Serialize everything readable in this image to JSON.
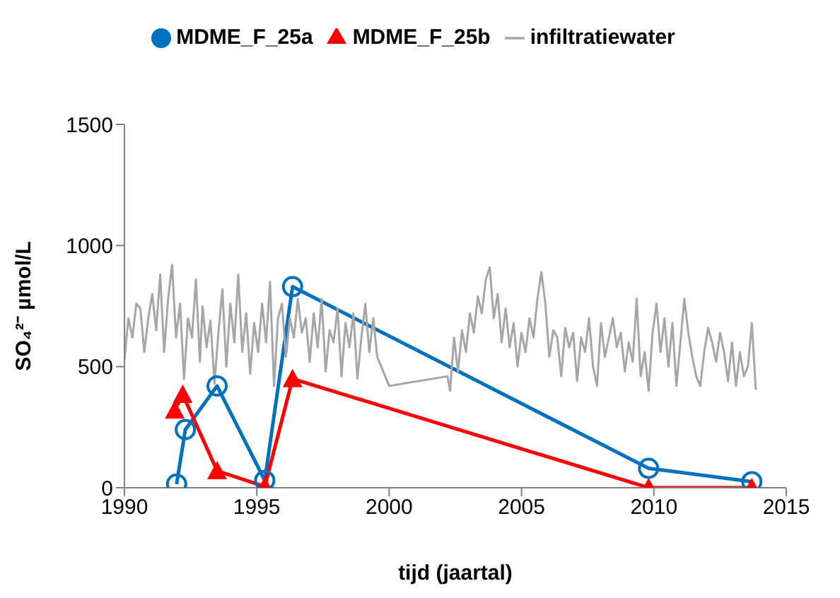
{
  "chart_data": {
    "type": "line",
    "xlabel": "tijd (jaartal)",
    "ylabel": "SO₄²⁻ µmol/L",
    "xlim": [
      1990,
      2015
    ],
    "xticks": [
      1990,
      1995,
      2000,
      2005,
      2010,
      2015
    ],
    "ylim": [
      0,
      1500
    ],
    "yticks": [
      0,
      500,
      1000,
      1500
    ],
    "grid": false,
    "legend": "top",
    "series": [
      {
        "name": "MDME_F_25a",
        "color": "#0070c0",
        "marker": "circle",
        "x": [
          1991.97,
          1992.3,
          1993.5,
          1995.3,
          1996.35,
          2009.8,
          2013.7
        ],
        "values": [
          15,
          240,
          420,
          30,
          830,
          80,
          25
        ]
      },
      {
        "name": "MDME_F_25b",
        "color": "#ff0000",
        "marker": "triangle",
        "x": [
          1991.9,
          1992.2,
          1993.5,
          1995.3,
          1996.35,
          2009.8,
          2013.7
        ],
        "values": [
          320,
          385,
          70,
          5,
          450,
          0,
          0
        ]
      },
      {
        "name": "infiltratiewater",
        "color": "#a6a6a6",
        "marker": "none",
        "x": [
          1990.0,
          1990.15,
          1990.3,
          1990.45,
          1990.6,
          1990.75,
          1990.9,
          1991.05,
          1991.2,
          1991.35,
          1991.5,
          1991.65,
          1991.8,
          1991.95,
          1992.1,
          1992.25,
          1992.4,
          1992.55,
          1992.7,
          1992.85,
          1992.95,
          1993.1,
          1993.25,
          1993.4,
          1993.55,
          1993.7,
          1993.85,
          1994.0,
          1994.15,
          1994.3,
          1994.45,
          1994.6,
          1994.75,
          1994.9,
          1995.05,
          1995.2,
          1995.35,
          1995.5,
          1995.65,
          1995.8,
          1995.95,
          1996.1,
          1996.25,
          1996.4,
          1996.55,
          1996.7,
          1996.85,
          1997.0,
          1997.15,
          1997.3,
          1997.45,
          1997.6,
          1997.75,
          1997.9,
          1998.05,
          1998.2,
          1998.35,
          1998.5,
          1998.65,
          1998.8,
          1998.95,
          1999.1,
          1999.25,
          1999.4,
          1999.55,
          2000.0,
          2002.2,
          2002.3,
          2002.45,
          2002.6,
          2002.75,
          2002.9,
          2003.05,
          2003.2,
          2003.35,
          2003.5,
          2003.65,
          2003.8,
          2003.95,
          2004.1,
          2004.25,
          2004.4,
          2004.55,
          2004.7,
          2004.85,
          2005.0,
          2005.15,
          2005.3,
          2005.45,
          2005.6,
          2005.75,
          2005.9,
          2006.05,
          2006.2,
          2006.35,
          2006.5,
          2006.65,
          2006.8,
          2006.95,
          2007.1,
          2007.25,
          2007.4,
          2007.55,
          2007.7,
          2007.85,
          2008.0,
          2008.15,
          2008.3,
          2008.45,
          2008.6,
          2008.75,
          2008.9,
          2009.05,
          2009.2,
          2009.35,
          2009.5,
          2009.65,
          2009.8,
          2009.95,
          2010.1,
          2010.25,
          2010.4,
          2010.55,
          2010.7,
          2010.85,
          2011.0,
          2011.15,
          2011.3,
          2011.45,
          2011.6,
          2011.75,
          2011.9,
          2012.05,
          2012.2,
          2012.35,
          2012.5,
          2012.65,
          2012.8,
          2012.95,
          2013.1,
          2013.25,
          2013.4,
          2013.55,
          2013.7,
          2013.85
        ],
        "values": [
          530,
          700,
          620,
          760,
          740,
          560,
          700,
          800,
          650,
          880,
          560,
          780,
          920,
          620,
          760,
          450,
          700,
          620,
          860,
          520,
          750,
          580,
          690,
          430,
          640,
          820,
          500,
          760,
          600,
          880,
          560,
          720,
          470,
          680,
          560,
          760,
          600,
          850,
          420,
          700,
          760,
          540,
          700,
          620,
          780,
          640,
          700,
          520,
          720,
          580,
          780,
          480,
          650,
          600,
          740,
          460,
          680,
          580,
          720,
          450,
          620,
          760,
          560,
          700,
          540,
          420,
          460,
          400,
          620,
          480,
          650,
          560,
          720,
          640,
          790,
          720,
          860,
          910,
          700,
          800,
          600,
          740,
          580,
          680,
          500,
          640,
          560,
          700,
          620,
          780,
          890,
          760,
          540,
          650,
          620,
          460,
          660,
          580,
          640,
          440,
          620,
          560,
          700,
          500,
          420,
          680,
          540,
          620,
          700,
          580,
          640,
          480,
          600,
          520,
          780,
          460,
          560,
          400,
          640,
          760,
          560,
          700,
          500,
          680,
          420,
          600,
          780,
          640,
          540,
          460,
          420,
          560,
          660,
          600,
          520,
          640,
          560,
          440,
          600,
          420,
          560,
          460,
          500,
          680,
          405
        ]
      }
    ]
  }
}
